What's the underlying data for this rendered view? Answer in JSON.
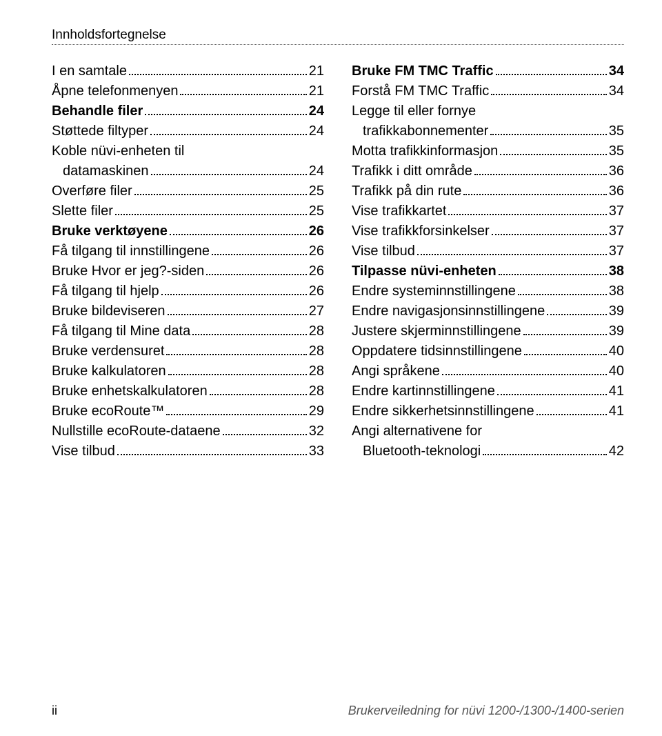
{
  "header": {
    "title": "Innholdsfortegnelse"
  },
  "left": [
    {
      "label": "I en samtale",
      "page": "21",
      "bold": false,
      "indent": false,
      "cont": null
    },
    {
      "label": "Åpne telefonmenyen",
      "page": "21",
      "bold": false,
      "indent": false,
      "cont": null
    },
    {
      "label": "Behandle filer",
      "page": "24",
      "bold": true,
      "indent": false,
      "cont": null
    },
    {
      "label": "Støttede filtyper",
      "page": "24",
      "bold": false,
      "indent": false,
      "cont": null
    },
    {
      "label": "Koble nüvi-enheten til",
      "page": "24",
      "bold": false,
      "indent": false,
      "cont": "datamaskinen"
    },
    {
      "label": "Overføre filer",
      "page": "25",
      "bold": false,
      "indent": false,
      "cont": null
    },
    {
      "label": "Slette filer",
      "page": "25",
      "bold": false,
      "indent": false,
      "cont": null
    },
    {
      "label": "Bruke verktøyene",
      "page": "26",
      "bold": true,
      "indent": false,
      "cont": null
    },
    {
      "label": "Få tilgang til innstillingene",
      "page": "26",
      "bold": false,
      "indent": false,
      "cont": null
    },
    {
      "label": "Bruke Hvor er jeg?-siden",
      "page": "26",
      "bold": false,
      "indent": false,
      "cont": null
    },
    {
      "label": "Få tilgang til hjelp",
      "page": "26",
      "bold": false,
      "indent": false,
      "cont": null
    },
    {
      "label": "Bruke bildeviseren",
      "page": "27",
      "bold": false,
      "indent": false,
      "cont": null
    },
    {
      "label": "Få tilgang til Mine data",
      "page": "28",
      "bold": false,
      "indent": false,
      "cont": null
    },
    {
      "label": "Bruke verdensuret",
      "page": "28",
      "bold": false,
      "indent": false,
      "cont": null
    },
    {
      "label": "Bruke kalkulatoren",
      "page": "28",
      "bold": false,
      "indent": false,
      "cont": null
    },
    {
      "label": "Bruke enhetskalkulatoren",
      "page": "28",
      "bold": false,
      "indent": false,
      "cont": null
    },
    {
      "label": "Bruke ecoRoute™",
      "page": "29",
      "bold": false,
      "indent": false,
      "cont": null
    },
    {
      "label": "Nullstille ecoRoute-dataene",
      "page": "32",
      "bold": false,
      "indent": false,
      "cont": null
    },
    {
      "label": "Vise tilbud",
      "page": "33",
      "bold": false,
      "indent": false,
      "cont": null
    }
  ],
  "right": [
    {
      "label": "Bruke FM TMC Traffic",
      "page": "34",
      "bold": true,
      "indent": false,
      "cont": null
    },
    {
      "label": "Forstå FM TMC Traffic",
      "page": "34",
      "bold": false,
      "indent": false,
      "cont": null
    },
    {
      "label": "Legge til eller fornye",
      "page": "35",
      "bold": false,
      "indent": false,
      "cont": "trafikkabonnementer"
    },
    {
      "label": "Motta trafikkinformasjon",
      "page": "35",
      "bold": false,
      "indent": false,
      "cont": null
    },
    {
      "label": "Trafikk i ditt område",
      "page": "36",
      "bold": false,
      "indent": false,
      "cont": null
    },
    {
      "label": "Trafikk på din rute",
      "page": "36",
      "bold": false,
      "indent": false,
      "cont": null
    },
    {
      "label": "Vise trafikkartet",
      "page": "37",
      "bold": false,
      "indent": false,
      "cont": null
    },
    {
      "label": "Vise trafikkforsinkelser",
      "page": "37",
      "bold": false,
      "indent": false,
      "cont": null
    },
    {
      "label": "Vise tilbud",
      "page": "37",
      "bold": false,
      "indent": false,
      "cont": null
    },
    {
      "label": "Tilpasse nüvi-enheten",
      "page": "38",
      "bold": true,
      "indent": false,
      "cont": null
    },
    {
      "label": "Endre systeminnstillingene",
      "page": "38",
      "bold": false,
      "indent": false,
      "cont": null
    },
    {
      "label": "Endre navigasjonsinnstillingene",
      "page": "39",
      "bold": false,
      "indent": false,
      "cont": null
    },
    {
      "label": "Justere skjerminnstillingene",
      "page": "39",
      "bold": false,
      "indent": false,
      "cont": null
    },
    {
      "label": "Oppdatere tidsinnstillingene",
      "page": "40",
      "bold": false,
      "indent": false,
      "cont": null
    },
    {
      "label": "Angi språkene",
      "page": "40",
      "bold": false,
      "indent": false,
      "cont": null
    },
    {
      "label": "Endre kartinnstillingene",
      "page": "41",
      "bold": false,
      "indent": false,
      "cont": null
    },
    {
      "label": "Endre sikkerhetsinnstillingene",
      "page": "41",
      "bold": false,
      "indent": false,
      "cont": null
    },
    {
      "label": "Angi alternativene for",
      "page": "42",
      "bold": false,
      "indent": false,
      "cont": "Bluetooth-teknologi"
    }
  ],
  "footer": {
    "page": "ii",
    "text": "Brukerveiledning for nüvi 1200-/1300-/1400-serien"
  }
}
